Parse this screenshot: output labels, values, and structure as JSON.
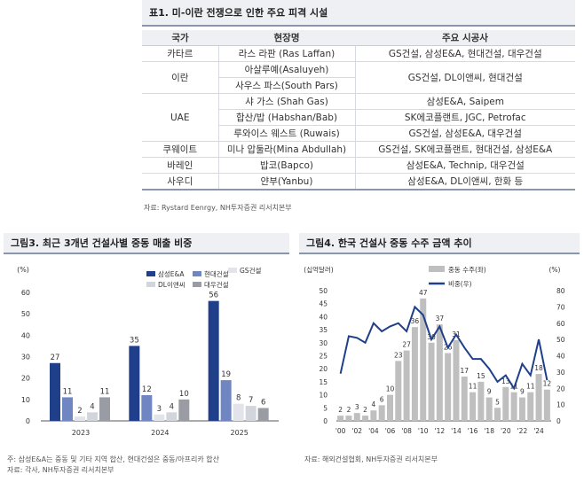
{
  "table": {
    "title": "표1. 미-이란 전쟁으로 인한 주요 피격 시설",
    "headers": [
      "국가",
      "현장명",
      "주요 시공사"
    ],
    "rows": [
      {
        "country": "카타르",
        "sites": [
          "라스 라판 (Ras Laffan)"
        ],
        "contractors": [
          "GS건설, 삼성E&A, 현대건설, 대우건설"
        ]
      },
      {
        "country": "이란",
        "sites": [
          "아살루예(Asaluyeh)",
          "사우스 파스(South Pars)"
        ],
        "contractors": [
          "GS건설, DL이앤씨, 현대건설"
        ]
      },
      {
        "country": "UAE",
        "sites": [
          "샤 가스 (Shah Gas)",
          "합산/밥 (Habshan/Bab)",
          "루와이스 웨스트 (Ruwais)"
        ],
        "contractors": [
          "삼성E&A, Saipem",
          "SK에코플랜트, JGC, Petrofac",
          "GS건설, 삼성E&A, 대우건설"
        ]
      },
      {
        "country": "쿠웨이트",
        "sites": [
          "미나 압둘라(Mina Abdullah)"
        ],
        "contractors": [
          "GS건설, SK에코플랜트, 현대건설, 삼성E&A"
        ]
      },
      {
        "country": "바레인",
        "sites": [
          "밥코(Bapco)"
        ],
        "contractors": [
          "삼성E&A, Technip, 대우건설"
        ]
      },
      {
        "country": "사우디",
        "sites": [
          "얀부(Yanbu)"
        ],
        "contractors": [
          "삼성E&A, DL이앤씨, 한화 등"
        ]
      }
    ],
    "source": "자료: Rystard Eenrgy, NH투자증권 리서치본부"
  },
  "fig3": {
    "title": "그림3. 최근 3개년 건설사별 중동 매출 비중",
    "note1": "주: 삼성E&A는 중동 및 기타 지역 합산, 현대건설은 중동/아프리카 합산",
    "note2": "자료: 각사, NH투자증권 리서치본부",
    "chart_data": {
      "type": "bar",
      "ylabel": "(%)",
      "ylim": [
        0,
        60
      ],
      "yticks": [
        0,
        10,
        20,
        30,
        40,
        50,
        60
      ],
      "categories": [
        "2023",
        "2024",
        "2025"
      ],
      "legend_position": "top-right",
      "series": [
        {
          "name": "삼성E&A",
          "color": "#1f3f8a",
          "values": [
            27,
            35,
            56
          ]
        },
        {
          "name": "현대건설",
          "color": "#6f86c2",
          "values": [
            11,
            12,
            19
          ]
        },
        {
          "name": "GS건설",
          "color": "#e2e4ea",
          "values": [
            2,
            3,
            8
          ]
        },
        {
          "name": "DL이앤씨",
          "color": "#d2d5dc",
          "values": [
            4,
            4,
            7
          ]
        },
        {
          "name": "대우건설",
          "color": "#9a9ca3",
          "values": [
            11,
            10,
            6
          ]
        }
      ]
    }
  },
  "fig4": {
    "title": "그림4. 한국 건설사 중동 수주 금액 추이",
    "note": "자료: 해외건설협회, NH투자증권 리서치본부",
    "chart_data": {
      "type": "bar-line",
      "ylabel_left": "(십억달러)",
      "ylabel_right": "(%)",
      "ylim_left": [
        0,
        50
      ],
      "yticks_left": [
        0,
        5,
        10,
        15,
        20,
        25,
        30,
        35,
        40,
        45,
        50
      ],
      "ylim_right": [
        0,
        80
      ],
      "yticks_right": [
        0,
        10,
        20,
        30,
        40,
        50,
        60,
        70,
        80
      ],
      "legend_position": "top-center",
      "years": [
        "2000",
        "2001",
        "2002",
        "2003",
        "2004",
        "2005",
        "2006",
        "2007",
        "2008",
        "2009",
        "2010",
        "2011",
        "2012",
        "2013",
        "2014",
        "2015",
        "2016",
        "2017",
        "2018",
        "2019",
        "2020",
        "2021",
        "2022",
        "2023",
        "2024",
        "2025"
      ],
      "xtick_labels": [
        "'00",
        "'02",
        "'04",
        "'06",
        "'08",
        "'10",
        "'12",
        "'14",
        "'16",
        "'18",
        "'20",
        "'22",
        "'24"
      ],
      "bar_series": {
        "name": "중동 수주(좌)",
        "color": "#bfbfbf",
        "values": [
          2,
          2,
          3,
          2,
          4,
          6,
          10,
          23,
          27,
          36,
          47,
          30,
          37,
          26,
          31,
          17,
          11,
          15,
          9,
          5,
          13,
          11,
          9,
          11,
          18,
          12
        ]
      },
      "line_series": {
        "name": "비중(우)",
        "color": "#1f3f8a",
        "values": [
          29,
          52,
          51,
          48,
          60,
          55,
          58,
          60,
          55,
          70,
          65,
          50,
          58,
          45,
          53,
          45,
          38,
          38,
          32,
          24,
          28,
          20,
          35,
          28,
          50,
          25
        ]
      }
    }
  }
}
